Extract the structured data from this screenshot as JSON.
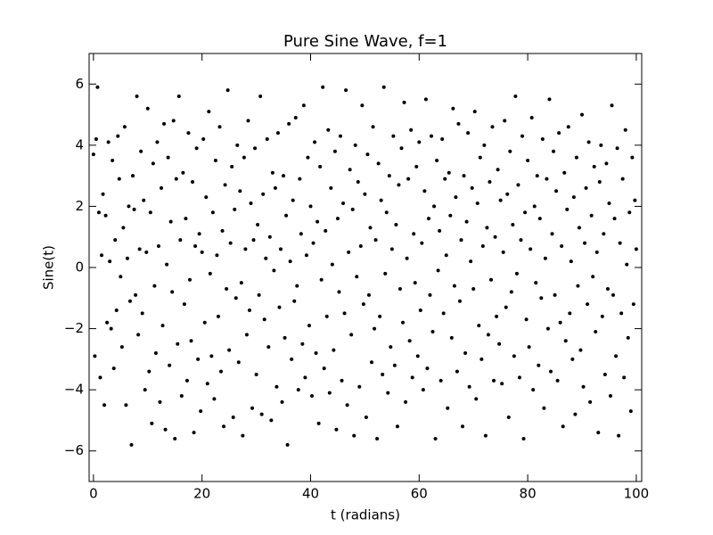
{
  "chart_data": {
    "type": "scatter",
    "title": "Pure Sine Wave, f=1",
    "x_label": "t (radians)",
    "y_label": "Sine(t)",
    "color": "#000000",
    "xlim": [
      -0.8,
      101
    ],
    "ylim": [
      -7,
      7
    ],
    "xticks": [
      0,
      20,
      40,
      60,
      80,
      100
    ],
    "yticks": [
      {
        "value": -6,
        "label": "−6"
      },
      {
        "value": -4,
        "label": "−4"
      },
      {
        "value": -2,
        "label": "−2"
      },
      0,
      2,
      4,
      6
    ],
    "x": [
      0,
      0.25,
      0.5,
      0.75,
      1,
      1.25,
      1.5,
      1.75,
      2,
      2.25,
      2.5,
      2.75,
      3,
      3.25,
      3.5,
      3.75,
      4,
      4.25,
      4.5,
      4.75,
      5,
      5.25,
      5.5,
      5.75,
      6,
      6.25,
      6.5,
      6.75,
      7,
      7.25,
      7.5,
      7.75,
      8,
      8.25,
      8.5,
      8.75,
      9,
      9.25,
      9.5,
      9.75,
      10,
      10.25,
      10.5,
      10.75,
      11,
      11.25,
      11.5,
      11.75,
      12,
      12.25,
      12.5,
      12.75,
      13,
      13.25,
      13.5,
      13.75,
      14,
      14.25,
      14.5,
      14.75,
      15,
      15.25,
      15.5,
      15.75,
      16,
      16.25,
      16.5,
      16.75,
      17,
      17.25,
      17.5,
      17.75,
      18,
      18.25,
      18.5,
      18.75,
      19,
      19.25,
      19.5,
      19.75,
      20,
      20.25,
      20.5,
      20.75,
      21,
      21.25,
      21.5,
      21.75,
      22,
      22.25,
      22.5,
      22.75,
      23,
      23.25,
      23.5,
      23.75,
      24,
      24.25,
      24.5,
      24.75,
      25,
      25.25,
      25.5,
      25.75,
      26,
      26.25,
      26.5,
      26.75,
      27,
      27.25,
      27.5,
      27.75,
      28,
      28.25,
      28.5,
      28.75,
      29,
      29.25,
      29.5,
      29.75,
      30,
      30.25,
      30.5,
      30.75,
      31,
      31.25,
      31.5,
      31.75,
      32,
      32.25,
      32.5,
      32.75,
      33,
      33.25,
      33.5,
      33.75,
      34,
      34.25,
      34.5,
      34.75,
      35,
      35.25,
      35.5,
      35.75,
      36,
      36.25,
      36.5,
      36.75,
      37,
      37.25,
      37.5,
      37.75,
      38,
      38.25,
      38.5,
      38.75,
      39,
      39.25,
      39.5,
      39.75,
      40,
      40.25,
      40.5,
      40.75,
      41,
      41.25,
      41.5,
      41.75,
      42,
      42.25,
      42.5,
      42.75,
      43,
      43.25,
      43.5,
      43.75,
      44,
      44.25,
      44.5,
      44.75,
      45,
      45.25,
      45.5,
      45.75,
      46,
      46.25,
      46.5,
      46.75,
      47,
      47.25,
      47.5,
      47.75,
      48,
      48.25,
      48.5,
      48.75,
      49,
      49.25,
      49.5,
      49.75,
      50,
      50.25,
      50.5,
      50.75,
      51,
      51.25,
      51.5,
      51.75,
      52,
      52.25,
      52.5,
      52.75,
      53,
      53.25,
      53.5,
      53.75,
      54,
      54.25,
      54.5,
      54.75,
      55,
      55.25,
      55.5,
      55.75,
      56,
      56.25,
      56.5,
      56.75,
      57,
      57.25,
      57.5,
      57.75,
      58,
      58.25,
      58.5,
      58.75,
      59,
      59.25,
      59.5,
      59.75,
      60,
      60.25,
      60.5,
      60.75,
      61,
      61.25,
      61.5,
      61.75,
      62,
      62.25,
      62.5,
      62.75,
      63,
      63.25,
      63.5,
      63.75,
      64,
      64.25,
      64.5,
      64.75,
      65,
      65.25,
      65.5,
      65.75,
      66,
      66.25,
      66.5,
      66.75,
      67,
      67.25,
      67.5,
      67.75,
      68,
      68.25,
      68.5,
      68.75,
      69,
      69.25,
      69.5,
      69.75,
      70,
      70.25,
      70.5,
      70.75,
      71,
      71.25,
      71.5,
      71.75,
      72,
      72.25,
      72.5,
      72.75,
      73,
      73.25,
      73.5,
      73.75,
      74,
      74.25,
      74.5,
      74.75,
      75,
      75.25,
      75.5,
      75.75,
      76,
      76.25,
      76.5,
      76.75,
      77,
      77.25,
      77.5,
      77.75,
      78,
      78.25,
      78.5,
      78.75,
      79,
      79.25,
      79.5,
      79.75,
      80,
      80.25,
      80.5,
      80.75,
      81,
      81.25,
      81.5,
      81.75,
      82,
      82.25,
      82.5,
      82.75,
      83,
      83.25,
      83.5,
      83.75,
      84,
      84.25,
      84.5,
      84.75,
      85,
      85.25,
      85.5,
      85.75,
      86,
      86.25,
      86.5,
      86.75,
      87,
      87.25,
      87.5,
      87.75,
      88,
      88.25,
      88.5,
      88.75,
      89,
      89.25,
      89.5,
      89.75,
      90,
      90.25,
      90.5,
      90.75,
      91,
      91.25,
      91.5,
      91.75,
      92,
      92.25,
      92.5,
      92.75,
      93,
      93.25,
      93.5,
      93.75,
      94,
      94.25,
      94.5,
      94.75,
      95,
      95.25,
      95.5,
      95.75,
      96,
      96.25,
      96.5,
      96.75,
      97,
      97.25,
      97.5,
      97.75,
      98,
      98.25,
      98.5,
      98.75,
      99,
      99.25,
      99.5,
      99.75,
      100
    ],
    "values": [
      3.7,
      -2.9,
      4.2,
      5.9,
      1.8,
      -3.6,
      0.4,
      2.4,
      -4.5,
      1.7,
      -1.8,
      4.1,
      0.2,
      -2.0,
      3.5,
      -3.3,
      0.9,
      -1.4,
      4.3,
      2.9,
      -0.3,
      -2.6,
      1.3,
      4.6,
      -4.5,
      0.3,
      2.0,
      -1.1,
      -5.8,
      3.0,
      1.9,
      -0.9,
      5.6,
      -2.2,
      0.6,
      3.8,
      -1.5,
      2.2,
      -4.0,
      0.5,
      5.2,
      -3.4,
      1.8,
      -5.1,
      3.4,
      -0.6,
      -2.8,
      4.1,
      0.7,
      -4.4,
      2.6,
      -1.9,
      4.7,
      -5.3,
      0.1,
      3.6,
      -3.2,
      1.5,
      -0.8,
      4.8,
      -5.6,
      2.9,
      -2.5,
      5.6,
      0.9,
      -4.2,
      3.1,
      -1.2,
      1.6,
      -3.7,
      4.4,
      -0.4,
      -2.4,
      2.8,
      -5.4,
      0.7,
      3.9,
      -3.0,
      1.1,
      -4.7,
      0.5,
      4.2,
      -1.8,
      2.3,
      -3.8,
      5.1,
      -0.2,
      -2.9,
      1.8,
      -4.3,
      3.5,
      0.4,
      -1.6,
      4.6,
      -3.4,
      1.2,
      -5.2,
      2.7,
      -0.7,
      5.8,
      -2.7,
      0.8,
      3.3,
      -4.9,
      1.9,
      -1.0,
      4.0,
      -3.1,
      2.5,
      -0.5,
      -5.5,
      3.6,
      0.6,
      -2.2,
      4.8,
      -1.4,
      2.1,
      -4.6,
      0.9,
      3.9,
      -3.5,
      1.4,
      -0.9,
      5.6,
      -4.8,
      2.4,
      -1.7,
      0.3,
      4.2,
      -2.6,
      1.0,
      -5.0,
      3.1,
      -0.1,
      2.6,
      -3.9,
      4.4,
      -1.3,
      0.6,
      -4.4,
      3.0,
      -2.3,
      1.7,
      -5.8,
      4.7,
      0.2,
      -3.0,
      2.2,
      -1.1,
      4.9,
      -0.6,
      -4.0,
      2.9,
      1.1,
      -2.5,
      5.3,
      -3.6,
      0.4,
      3.6,
      -1.9,
      2.0,
      -4.2,
      0.8,
      4.1,
      -2.8,
      1.5,
      -5.1,
      3.3,
      -0.4,
      5.9,
      -3.3,
      1.2,
      -1.6,
      4.5,
      -4.1,
      2.6,
      0.1,
      -2.7,
      3.8,
      -5.3,
      1.6,
      -0.8,
      4.3,
      -3.7,
      2.1,
      -1.5,
      5.8,
      -4.5,
      0.5,
      3.2,
      -2.2,
      1.9,
      -5.5,
      4.0,
      -0.3,
      2.8,
      -3.9,
      0.7,
      5.3,
      -1.2,
      2.4,
      -4.9,
      3.7,
      -0.9,
      1.3,
      -3.1,
      4.6,
      -2.0,
      0.9,
      -5.6,
      3.4,
      -1.6,
      2.2,
      -3.5,
      5.9,
      -0.2,
      1.8,
      -4.1,
      3.0,
      -2.6,
      0.6,
      4.3,
      -3.2,
      1.4,
      -5.2,
      2.7,
      -0.7,
      3.9,
      -1.8,
      5.4,
      -4.4,
      0.3,
      2.9,
      -2.4,
      4.5,
      -3.6,
      1.1,
      -0.5,
      3.3,
      -2.9,
      4.1,
      -1.4,
      0.8,
      -4.0,
      2.5,
      5.5,
      -3.3,
      1.6,
      -0.9,
      4.3,
      -2.1,
      2.0,
      -5.6,
      3.5,
      -0.1,
      1.2,
      -3.7,
      4.2,
      -1.5,
      2.9,
      0.4,
      -4.6,
      3.1,
      1.7,
      -2.3,
      5.2,
      -0.6,
      2.3,
      -3.4,
      4.7,
      -1.1,
      0.9,
      -5.2,
      3.0,
      -2.8,
      1.5,
      4.4,
      -3.9,
      0.2,
      2.6,
      -0.7,
      5.1,
      -4.3,
      2.1,
      -1.9,
      3.6,
      -3.0,
      0.7,
      4.0,
      -5.5,
      1.3,
      -2.2,
      2.8,
      -0.4,
      4.6,
      -3.7,
      1.0,
      -1.6,
      3.2,
      -2.5,
      2.2,
      -3.8,
      0.5,
      4.8,
      -1.3,
      2.4,
      -4.9,
      3.8,
      -0.8,
      1.4,
      -2.9,
      5.6,
      -0.2,
      2.7,
      -3.6,
      0.9,
      4.3,
      -5.6,
      1.8,
      -1.7,
      3.5,
      -2.6,
      0.6,
      4.9,
      -4.0,
      2.0,
      -0.5,
      3.0,
      -3.2,
      1.6,
      -1.0,
      4.2,
      -4.6,
      0.3,
      2.9,
      -2.0,
      5.5,
      -3.4,
      1.1,
      3.8,
      -0.9,
      2.5,
      -3.7,
      4.4,
      -1.8,
      0.7,
      -5.2,
      3.1,
      -2.4,
      1.9,
      4.6,
      -1.5,
      0.2,
      -3.0,
      2.3,
      -4.8,
      3.6,
      -0.6,
      1.3,
      -2.7,
      5.0,
      -3.9,
      0.8,
      2.6,
      -1.2,
      4.1,
      -4.4,
      1.7,
      -0.3,
      3.3,
      -2.1,
      0.5,
      -5.4,
      2.8,
      4.0,
      -1.6,
      1.1,
      -3.5,
      3.4,
      -0.7,
      2.1,
      -4.2,
      5.3,
      -0.9,
      1.6,
      -2.9,
      3.9,
      -5.5,
      0.8,
      -1.5,
      2.9,
      -3.6,
      4.5,
      0.1,
      -2.3,
      1.8,
      -4.7,
      3.6,
      -1.2,
      2.2,
      0.6
    ]
  }
}
